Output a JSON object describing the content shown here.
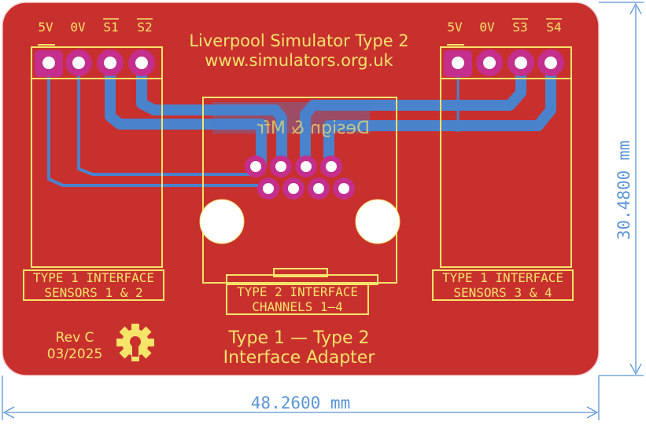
{
  "board": {
    "title_line1": "Liverpool Simulator Type 2",
    "title_line2": "www.simulators.org.uk",
    "footer_line1": "Type 1 — Type 2",
    "footer_line2": "Interface Adapter",
    "rev_line1": "Rev C",
    "rev_line2": "03/2025",
    "mirrored_text": "Design & Mfr",
    "colors": {
      "pcb": "#c8302e",
      "silkscreen": "#f6e36a",
      "copper_back": "#4a82cc",
      "pad_ring": "#c42e8c",
      "dimension": "#5a95d6"
    }
  },
  "connectors": {
    "left": {
      "pins": [
        "5V",
        "0V",
        "S1",
        "S2"
      ],
      "label_line1": "TYPE 1 INTERFACE",
      "label_line2": "SENSORS 1 & 2"
    },
    "right": {
      "pins": [
        "5V",
        "0V",
        "S3",
        "S4"
      ],
      "label_line1": "TYPE 1 INTERFACE",
      "label_line2": "SENSORS 3 & 4"
    },
    "center": {
      "label_line1": "TYPE 2 INTERFACE",
      "label_line2": "CHANNELS 1–4"
    }
  },
  "dimensions": {
    "width": "48.2600 mm",
    "height": "30.4800 mm"
  },
  "icons": [
    "open-hardware-gear-icon"
  ]
}
